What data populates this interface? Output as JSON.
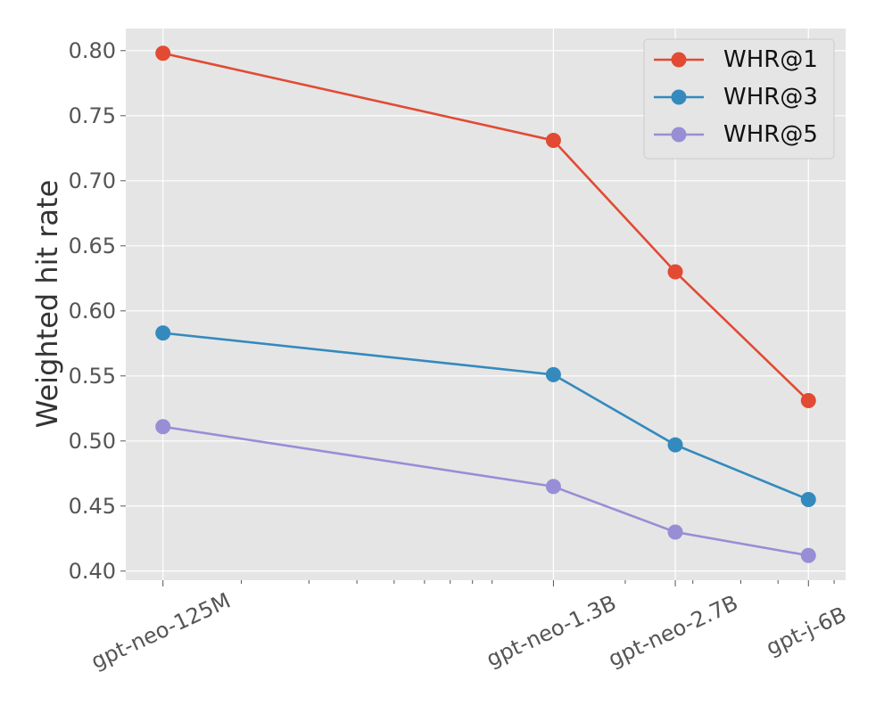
{
  "chart_data": {
    "type": "line",
    "title": "",
    "xlabel": "",
    "ylabel": "Weighted hit rate",
    "x_scale": "log",
    "x_unit": "parameters (millions)",
    "x": [
      125,
      1300,
      2700,
      6000
    ],
    "categories": [
      "gpt-neo-125M",
      "gpt-neo-1.3B",
      "gpt-neo-2.7B",
      "gpt-j-6B"
    ],
    "ylim": [
      0.393,
      0.817
    ],
    "y_ticks": [
      0.4,
      0.45,
      0.5,
      0.55,
      0.6,
      0.65,
      0.7,
      0.75,
      0.8
    ],
    "y_tick_labels": [
      "0.40",
      "0.45",
      "0.50",
      "0.55",
      "0.60",
      "0.65",
      "0.70",
      "0.75",
      "0.80"
    ],
    "grid": true,
    "legend_position": "top-right",
    "series": [
      {
        "name": "WHR@1",
        "color": "#E24A33",
        "values": [
          0.798,
          0.731,
          0.63,
          0.531
        ]
      },
      {
        "name": "WHR@3",
        "color": "#348ABD",
        "values": [
          0.583,
          0.551,
          0.497,
          0.455
        ]
      },
      {
        "name": "WHR@5",
        "color": "#988ED5",
        "values": [
          0.511,
          0.465,
          0.43,
          0.412
        ]
      }
    ]
  }
}
